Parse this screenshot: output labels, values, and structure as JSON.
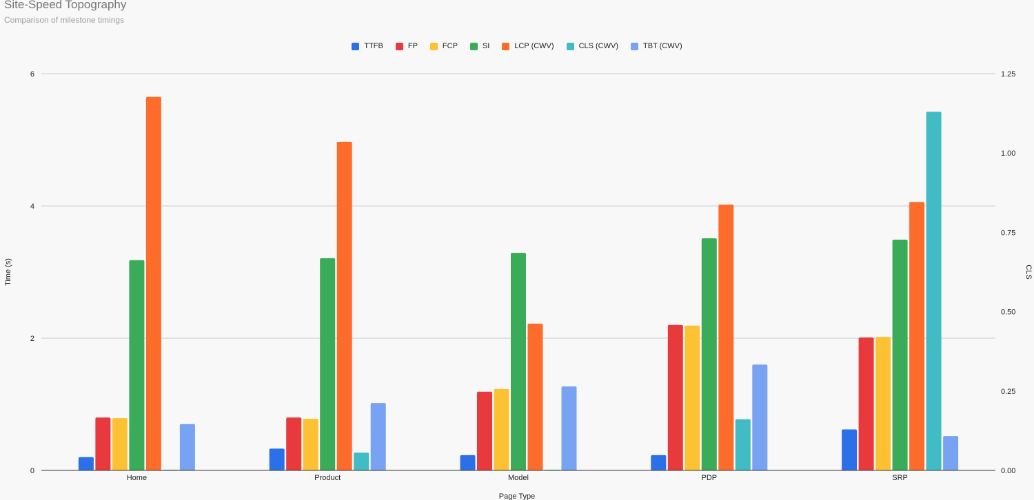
{
  "chart_data": {
    "type": "bar",
    "title": "Site-Speed Topography",
    "subtitle": "Comparison of milestone timings",
    "xlabel": "Page Type",
    "ylabel": "Time (s)",
    "y2label": "CLS",
    "categories": [
      "Home",
      "Product",
      "Model",
      "PDP",
      "SRP"
    ],
    "ylim": [
      0,
      6
    ],
    "yticks": [
      0,
      2,
      4,
      6
    ],
    "y2lim": [
      0,
      1.25
    ],
    "y2ticks": [
      "0.00",
      "0.25",
      "0.50",
      "0.75",
      "1.00",
      "1.25"
    ],
    "legend_position": "top",
    "grid": true,
    "series": [
      {
        "name": "TTFB",
        "color": "#2b70e8",
        "axis": "left",
        "values": [
          0.2,
          0.33,
          0.23,
          0.23,
          0.62
        ]
      },
      {
        "name": "FP",
        "color": "#e8393c",
        "axis": "left",
        "values": [
          0.8,
          0.8,
          1.19,
          2.2,
          2.01
        ]
      },
      {
        "name": "FCP",
        "color": "#fdc233",
        "axis": "left",
        "values": [
          0.79,
          0.78,
          1.23,
          2.19,
          2.02
        ]
      },
      {
        "name": "SI",
        "color": "#3aab58",
        "axis": "left",
        "values": [
          3.18,
          3.21,
          3.29,
          3.51,
          3.49
        ]
      },
      {
        "name": "LCP (CWV)",
        "color": "#fd6c2a",
        "axis": "left",
        "values": [
          5.65,
          4.97,
          2.22,
          4.02,
          4.06
        ]
      },
      {
        "name": "CLS (CWV)",
        "color": "#41bcc4",
        "axis": "right",
        "values": [
          0.001,
          0.056,
          0.001,
          0.161,
          1.13
        ]
      },
      {
        "name": "TBT (CWV)",
        "color": "#77a3f2",
        "axis": "left",
        "values": [
          0.7,
          1.02,
          1.27,
          1.6,
          0.52
        ]
      }
    ]
  }
}
